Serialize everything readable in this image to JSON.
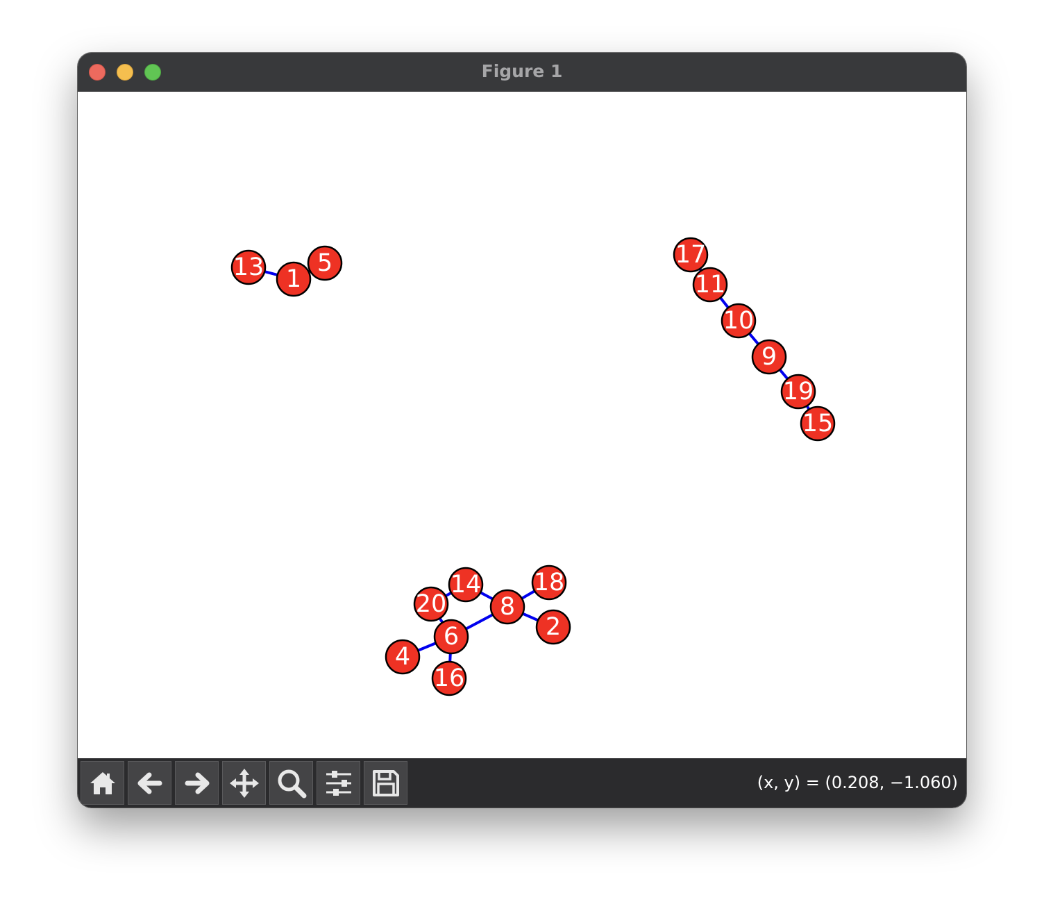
{
  "window": {
    "title": "Figure 1"
  },
  "graph": {
    "node_fill": "#ee3224",
    "node_stroke": "#000000",
    "edge_color": "#0000ee",
    "label_color": "#ffffff",
    "nodes": [
      {
        "id": "13"
      },
      {
        "id": "1"
      },
      {
        "id": "5"
      },
      {
        "id": "17"
      },
      {
        "id": "11"
      },
      {
        "id": "10"
      },
      {
        "id": "9"
      },
      {
        "id": "19"
      },
      {
        "id": "15"
      },
      {
        "id": "14"
      },
      {
        "id": "18"
      },
      {
        "id": "20"
      },
      {
        "id": "8"
      },
      {
        "id": "2"
      },
      {
        "id": "6"
      },
      {
        "id": "4"
      },
      {
        "id": "16"
      }
    ],
    "edges": [
      [
        "13",
        "1"
      ],
      [
        "1",
        "5"
      ],
      [
        "17",
        "11"
      ],
      [
        "11",
        "10"
      ],
      [
        "10",
        "9"
      ],
      [
        "9",
        "19"
      ],
      [
        "19",
        "15"
      ],
      [
        "20",
        "14"
      ],
      [
        "14",
        "8"
      ],
      [
        "8",
        "18"
      ],
      [
        "8",
        "2"
      ],
      [
        "8",
        "6"
      ],
      [
        "20",
        "6"
      ],
      [
        "6",
        "4"
      ],
      [
        "6",
        "16"
      ]
    ]
  },
  "toolbar": {
    "buttons": [
      {
        "name": "home-button",
        "icon": "home-icon"
      },
      {
        "name": "back-button",
        "icon": "arrow-left-icon"
      },
      {
        "name": "forward-button",
        "icon": "arrow-right-icon"
      },
      {
        "name": "pan-button",
        "icon": "move-icon"
      },
      {
        "name": "zoom-button",
        "icon": "magnifier-icon"
      },
      {
        "name": "configure-subplots-button",
        "icon": "sliders-icon"
      },
      {
        "name": "save-button",
        "icon": "floppy-disk-icon"
      }
    ],
    "coordinates": "(x, y) = (0.208, −1.060)"
  }
}
